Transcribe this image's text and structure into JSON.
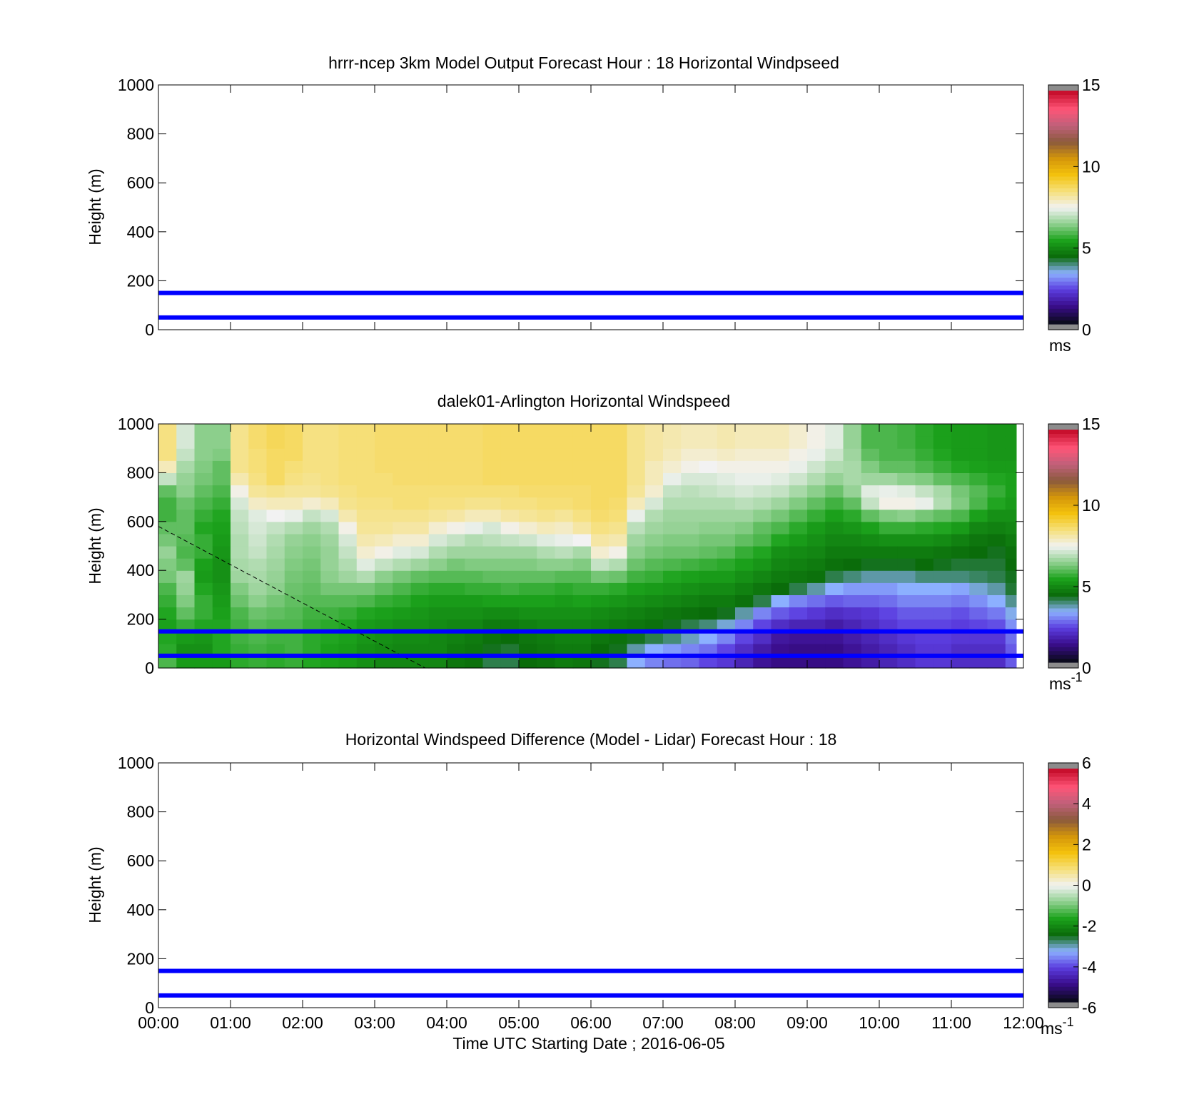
{
  "chart_data": [
    {
      "type": "heatmap",
      "title": "hrrr-ncep 3km Model Output   Forecast Hour : 18 Horizontal Windpseed",
      "ylabel": "Height (m)",
      "xlabel": "",
      "ylim": [
        0,
        1000
      ],
      "yticks": [
        "0",
        "200",
        "400",
        "600",
        "800",
        "1000"
      ],
      "xlim_hours": [
        0,
        12
      ],
      "colorbar": {
        "ticks": [
          "0",
          "5",
          "10",
          "15"
        ],
        "unit": "ms",
        "unit_sup": "",
        "range": [
          0,
          15
        ]
      },
      "reference_lines_m": [
        50,
        150
      ],
      "cells": []
    },
    {
      "type": "heatmap",
      "title": "dalek01-Arlington  Horizontal Windspeed",
      "ylabel": "Height (m)",
      "xlabel": "",
      "ylim": [
        0,
        1000
      ],
      "yticks": [
        "0",
        "200",
        "400",
        "600",
        "800",
        "1000"
      ],
      "xlim_hours": [
        0,
        12
      ],
      "colorbar": {
        "ticks": [
          "0",
          "5",
          "10",
          "15"
        ],
        "unit": "ms",
        "unit_sup": "-1",
        "range": [
          0,
          15
        ]
      },
      "reference_lines_m": [
        50,
        150
      ],
      "dashed_line": {
        "from": [
          0,
          580
        ],
        "to": [
          3.7,
          0
        ]
      },
      "column_times_h": [
        0,
        0.25,
        0.5,
        0.75,
        1,
        1.25,
        1.5,
        1.75,
        2,
        2.25,
        2.5,
        2.75,
        3,
        3.25,
        3.5,
        3.75,
        4,
        4.25,
        4.5,
        4.75,
        5,
        5.25,
        5.5,
        5.75,
        6,
        6.25,
        6.5,
        6.75,
        7,
        7.25,
        7.5,
        7.75,
        8,
        8.25,
        8.5,
        8.75,
        9,
        9.25,
        9.5,
        9.75,
        10,
        10.25,
        10.5,
        10.75,
        11,
        11.25,
        11.5,
        11.75
      ],
      "height_levels_m": [
        0,
        50,
        100,
        150,
        200,
        250,
        300,
        350,
        400,
        450,
        500,
        550,
        600,
        650,
        700,
        750,
        800,
        850,
        900,
        950
      ],
      "windspeed_ms": [
        [
          5.8,
          5.5,
          5.4,
          5.3,
          5.4,
          5.6,
          5.8,
          6.2,
          6.3,
          6.5,
          6.2,
          6.0,
          5.7,
          5.7,
          6.0,
          7.0,
          8.0,
          8.5,
          8.5,
          8.5
        ],
        [
          5.2,
          5.0,
          5.2,
          5.6,
          6.0,
          6.3,
          6.5,
          6.6,
          6.0,
          5.8,
          5.9,
          6.0,
          6.0,
          6.1,
          6.4,
          6.5,
          6.7,
          7.0,
          7.2,
          7.2
        ],
        [
          5.2,
          5.0,
          5.1,
          5.4,
          5.6,
          5.6,
          5.4,
          5.2,
          5.3,
          5.6,
          5.6,
          5.4,
          5.6,
          5.8,
          6.0,
          6.2,
          6.3,
          6.4,
          6.4,
          6.4
        ],
        [
          5.2,
          5.4,
          5.4,
          5.4,
          5.3,
          5.2,
          5.1,
          5.0,
          5.0,
          5.1,
          5.2,
          5.3,
          5.4,
          5.6,
          5.8,
          6.0,
          6.0,
          6.3,
          6.4,
          6.4
        ],
        [
          5.5,
          5.6,
          5.7,
          5.7,
          5.8,
          6.1,
          6.3,
          6.6,
          6.7,
          6.8,
          6.8,
          6.9,
          7.0,
          7.2,
          7.6,
          8.1,
          8.4,
          8.4,
          8.4,
          8.4
        ],
        [
          5.6,
          5.7,
          5.8,
          5.9,
          6.1,
          6.4,
          6.6,
          6.7,
          6.8,
          7.0,
          7.1,
          7.2,
          7.3,
          7.9,
          8.3,
          8.5,
          8.6,
          8.6,
          8.7,
          8.7
        ],
        [
          5.5,
          5.6,
          5.7,
          5.8,
          6.0,
          6.2,
          6.4,
          6.5,
          6.6,
          6.7,
          6.8,
          7.0,
          7.5,
          8.0,
          8.4,
          8.8,
          8.8,
          8.8,
          8.9,
          8.9
        ],
        [
          5.6,
          5.7,
          5.7,
          5.8,
          5.9,
          6.0,
          6.1,
          6.2,
          6.3,
          6.4,
          6.5,
          6.8,
          7.4,
          8.0,
          8.3,
          8.5,
          8.6,
          8.8,
          8.8,
          8.8
        ],
        [
          5.4,
          5.5,
          5.5,
          5.6,
          5.7,
          5.9,
          6.0,
          6.1,
          6.2,
          6.3,
          6.4,
          6.6,
          7.0,
          7.8,
          8.3,
          8.4,
          8.5,
          8.5,
          8.5,
          8.5
        ],
        [
          5.3,
          5.3,
          5.4,
          5.5,
          5.7,
          5.9,
          6.2,
          6.4,
          6.5,
          6.5,
          6.6,
          6.8,
          7.2,
          8.0,
          8.4,
          8.5,
          8.5,
          8.5,
          8.5,
          8.5
        ],
        [
          5.2,
          5.2,
          5.3,
          5.4,
          5.6,
          5.9,
          6.2,
          6.6,
          6.8,
          7.0,
          7.2,
          7.6,
          8.1,
          8.4,
          8.5,
          8.6,
          8.6,
          8.6,
          8.6,
          8.6
        ],
        [
          5.0,
          5.0,
          5.1,
          5.2,
          5.4,
          5.8,
          6.2,
          6.8,
          7.3,
          7.8,
          8.1,
          8.3,
          8.4,
          8.5,
          8.6,
          8.6,
          8.6,
          8.6,
          8.6,
          8.6
        ],
        [
          4.8,
          4.9,
          5.0,
          5.1,
          5.3,
          5.6,
          6.0,
          6.4,
          7.0,
          7.6,
          8.0,
          8.3,
          8.4,
          8.5,
          8.6,
          8.6,
          8.7,
          8.7,
          8.7,
          8.7
        ],
        [
          4.8,
          4.8,
          4.9,
          5.0,
          5.2,
          5.5,
          5.8,
          6.2,
          6.8,
          7.3,
          7.8,
          8.2,
          8.4,
          8.6,
          8.6,
          8.7,
          8.7,
          8.7,
          8.7,
          8.7
        ],
        [
          4.8,
          4.8,
          4.9,
          5.0,
          5.1,
          5.3,
          5.6,
          6.0,
          6.6,
          7.2,
          7.8,
          8.2,
          8.4,
          8.6,
          8.6,
          8.7,
          8.7,
          8.7,
          8.7,
          8.7
        ],
        [
          4.8,
          4.8,
          4.8,
          4.9,
          5.0,
          5.2,
          5.5,
          5.9,
          6.4,
          6.8,
          7.2,
          7.8,
          8.3,
          8.5,
          8.6,
          8.7,
          8.7,
          8.7,
          8.7,
          8.7
        ],
        [
          4.5,
          4.6,
          4.7,
          4.8,
          5.0,
          5.2,
          5.5,
          5.9,
          6.2,
          6.6,
          7.0,
          7.6,
          8.2,
          8.5,
          8.6,
          8.7,
          8.7,
          8.7,
          8.7,
          8.7
        ],
        [
          4.4,
          4.5,
          4.6,
          4.8,
          5.0,
          5.2,
          5.6,
          5.9,
          6.3,
          6.6,
          6.8,
          7.4,
          8.0,
          8.4,
          8.6,
          8.7,
          8.7,
          8.7,
          8.7,
          8.7
        ],
        [
          4.0,
          4.2,
          4.4,
          4.6,
          4.9,
          5.3,
          5.6,
          6.0,
          6.3,
          6.6,
          6.9,
          7.2,
          8.0,
          8.4,
          8.6,
          8.8,
          8.8,
          8.8,
          8.8,
          8.8
        ],
        [
          4.0,
          4.1,
          4.3,
          4.6,
          4.9,
          5.3,
          5.7,
          6.0,
          6.3,
          6.6,
          7.0,
          7.6,
          8.2,
          8.5,
          8.6,
          8.8,
          8.8,
          8.8,
          8.8,
          8.8
        ],
        [
          4.3,
          4.4,
          4.5,
          4.7,
          5.0,
          5.3,
          5.6,
          6.0,
          6.3,
          6.6,
          7.1,
          7.8,
          8.3,
          8.5,
          8.7,
          8.8,
          8.8,
          8.8,
          8.8,
          8.8
        ],
        [
          4.4,
          4.5,
          4.6,
          4.8,
          5.0,
          5.3,
          5.6,
          6.0,
          6.4,
          6.8,
          7.3,
          8.0,
          8.4,
          8.6,
          8.7,
          8.8,
          8.8,
          8.8,
          8.8,
          8.8
        ],
        [
          4.6,
          4.6,
          4.7,
          4.8,
          5.0,
          5.2,
          5.5,
          5.9,
          6.4,
          6.9,
          7.4,
          7.9,
          8.3,
          8.6,
          8.7,
          8.8,
          8.8,
          8.8,
          8.8,
          8.8
        ],
        [
          4.5,
          4.6,
          4.7,
          4.8,
          5.0,
          5.3,
          5.6,
          5.9,
          6.3,
          6.7,
          7.5,
          8.2,
          8.5,
          8.7,
          8.7,
          8.8,
          8.8,
          8.8,
          8.8,
          8.8
        ],
        [
          4.2,
          4.3,
          4.5,
          4.7,
          4.9,
          5.2,
          5.6,
          6.2,
          7.0,
          7.8,
          8.2,
          8.5,
          8.7,
          8.8,
          8.8,
          8.8,
          8.8,
          8.8,
          8.8,
          8.8
        ],
        [
          4.0,
          4.2,
          4.4,
          4.6,
          4.8,
          5.1,
          5.5,
          6.1,
          6.8,
          7.6,
          8.1,
          8.4,
          8.6,
          8.7,
          8.8,
          8.8,
          8.8,
          8.8,
          8.8,
          8.8
        ],
        [
          3.2,
          3.6,
          4.2,
          4.5,
          4.7,
          5.0,
          5.3,
          5.7,
          6.1,
          6.4,
          6.6,
          6.9,
          7.4,
          8.0,
          8.3,
          8.4,
          8.4,
          8.4,
          8.4,
          8.4
        ],
        [
          2.8,
          3.2,
          4.0,
          4.4,
          4.6,
          4.9,
          5.2,
          5.6,
          5.9,
          6.2,
          6.4,
          6.6,
          6.8,
          7.2,
          7.8,
          8.0,
          8.0,
          8.2,
          8.2,
          8.2
        ],
        [
          2.6,
          3.0,
          3.8,
          4.2,
          4.5,
          4.8,
          5.1,
          5.4,
          5.8,
          6.1,
          6.3,
          6.5,
          6.6,
          6.8,
          7.0,
          7.4,
          7.8,
          8.0,
          8.1,
          8.1
        ],
        [
          2.5,
          2.8,
          3.5,
          4.0,
          4.4,
          4.7,
          5.0,
          5.3,
          5.7,
          6.1,
          6.3,
          6.5,
          6.6,
          6.8,
          6.9,
          7.2,
          7.6,
          7.8,
          8.0,
          8.0
        ],
        [
          2.2,
          2.6,
          3.2,
          3.8,
          4.3,
          4.6,
          4.9,
          5.2,
          5.6,
          6.0,
          6.2,
          6.4,
          6.6,
          6.8,
          7.0,
          7.2,
          7.5,
          7.8,
          8.0,
          8.0
        ],
        [
          2.0,
          2.2,
          2.8,
          3.4,
          4.2,
          4.6,
          4.9,
          5.2,
          5.5,
          5.9,
          6.2,
          6.4,
          6.6,
          6.8,
          7.1,
          7.3,
          7.6,
          7.9,
          8.1,
          8.1
        ],
        [
          1.6,
          1.8,
          2.2,
          2.8,
          3.6,
          4.4,
          4.7,
          5.0,
          5.3,
          5.6,
          6.0,
          6.3,
          6.6,
          6.9,
          7.2,
          7.4,
          7.6,
          7.8,
          8.0,
          8.0
        ],
        [
          1.2,
          1.4,
          1.8,
          2.2,
          2.8,
          4.0,
          4.5,
          4.8,
          5.1,
          5.4,
          5.8,
          6.0,
          6.4,
          6.8,
          7.1,
          7.4,
          7.6,
          7.8,
          8.0,
          8.0
        ],
        [
          1.0,
          1.1,
          1.3,
          1.8,
          2.4,
          3.2,
          4.3,
          4.6,
          4.8,
          5.0,
          5.4,
          5.8,
          6.2,
          6.6,
          7.0,
          7.3,
          7.6,
          7.8,
          8.0,
          8.0
        ],
        [
          1.0,
          1.0,
          1.2,
          1.6,
          2.2,
          2.8,
          4.0,
          4.5,
          4.7,
          4.9,
          5.2,
          5.5,
          5.9,
          6.3,
          6.7,
          7.1,
          7.4,
          7.6,
          7.8,
          7.8
        ],
        [
          1.0,
          1.0,
          1.2,
          1.6,
          2.0,
          2.6,
          3.6,
          4.4,
          4.6,
          4.8,
          5.0,
          5.2,
          5.6,
          6.0,
          6.4,
          6.8,
          7.1,
          7.4,
          7.6,
          7.6
        ],
        [
          1.0,
          1.0,
          1.2,
          1.4,
          1.8,
          2.4,
          3.2,
          4.0,
          4.4,
          4.6,
          4.8,
          5.0,
          5.3,
          5.7,
          6.1,
          6.5,
          6.8,
          7.1,
          7.3,
          7.3
        ],
        [
          1.2,
          1.2,
          1.4,
          1.6,
          1.9,
          2.5,
          3.0,
          3.8,
          4.3,
          4.6,
          4.8,
          5.1,
          5.5,
          6.0,
          6.5,
          6.7,
          6.7,
          6.6,
          6.5,
          6.5
        ],
        [
          1.4,
          1.4,
          1.6,
          1.8,
          2.0,
          2.5,
          3.0,
          3.6,
          4.2,
          4.6,
          4.9,
          5.3,
          6.0,
          7.0,
          7.3,
          6.6,
          6.3,
          6.0,
          5.8,
          5.8
        ],
        [
          1.6,
          1.6,
          1.8,
          2.0,
          2.2,
          2.6,
          3.0,
          3.6,
          4.2,
          4.6,
          5.0,
          5.6,
          6.3,
          7.6,
          7.4,
          6.6,
          6.0,
          5.8,
          5.8,
          5.8
        ],
        [
          1.8,
          1.8,
          2.0,
          2.2,
          2.4,
          2.8,
          3.2,
          3.6,
          4.2,
          4.6,
          5.0,
          5.6,
          6.4,
          7.6,
          7.3,
          6.4,
          6.0,
          5.8,
          5.7,
          5.7
        ],
        [
          2.0,
          2.0,
          2.1,
          2.2,
          2.4,
          2.8,
          3.2,
          3.8,
          4.3,
          4.6,
          5.0,
          5.5,
          6.2,
          7.4,
          7.0,
          6.3,
          5.8,
          5.6,
          5.5,
          5.5
        ],
        [
          2.0,
          2.0,
          2.1,
          2.2,
          2.4,
          2.8,
          3.2,
          3.8,
          4.2,
          4.5,
          4.9,
          5.4,
          6.0,
          6.8,
          6.7,
          6.0,
          5.6,
          5.4,
          5.3,
          5.3
        ],
        [
          1.8,
          1.8,
          2.0,
          2.1,
          2.3,
          2.7,
          3.1,
          3.8,
          4.1,
          4.4,
          4.7,
          5.2,
          5.8,
          6.3,
          6.2,
          5.8,
          5.4,
          5.2,
          5.2,
          5.2
        ],
        [
          1.8,
          1.8,
          2.0,
          2.2,
          2.5,
          2.9,
          3.4,
          3.9,
          4.1,
          4.3,
          4.5,
          4.8,
          5.3,
          5.8,
          5.9,
          5.6,
          5.3,
          5.2,
          5.2,
          5.2
        ],
        [
          1.8,
          1.8,
          2.0,
          2.3,
          2.7,
          3.2,
          3.6,
          4.0,
          4.1,
          4.2,
          4.4,
          4.7,
          5.0,
          5.4,
          5.6,
          5.4,
          5.2,
          5.1,
          5.1,
          5.1
        ],
        [
          2.4,
          2.4,
          2.6,
          2.9,
          3.3,
          3.7,
          4.1,
          4.2,
          4.3,
          4.4,
          4.6,
          4.8,
          5.0,
          5.2,
          5.3,
          5.3,
          5.2,
          5.1,
          5.1,
          5.1
        ]
      ]
    },
    {
      "type": "heatmap",
      "title": "Horizontal Windspeed Difference (Model - Lidar) Forecast Hour : 18",
      "ylabel": "Height (m)",
      "xlabel": "Time UTC  Starting Date ; 2016-06-05",
      "ylim": [
        0,
        1000
      ],
      "yticks": [
        "0",
        "200",
        "400",
        "600",
        "800",
        "1000"
      ],
      "xlim_hours": [
        0,
        12
      ],
      "xticks": [
        "00:00",
        "01:00",
        "02:00",
        "03:00",
        "04:00",
        "05:00",
        "06:00",
        "07:00",
        "08:00",
        "09:00",
        "10:00",
        "11:00",
        "12:00"
      ],
      "colorbar": {
        "ticks": [
          "-6",
          "-4",
          "-2",
          "0",
          "2",
          "4",
          "6"
        ],
        "unit": "ms",
        "unit_sup": "-1",
        "range": [
          -6,
          6
        ]
      },
      "reference_lines_m": [
        50,
        150
      ],
      "cells": []
    }
  ],
  "colors": {
    "reference_line": "#0000ff",
    "colormap_stops": [
      "#8c8c8c",
      "#0c0b1f",
      "#3a0d8c",
      "#5b3ee0",
      "#8db2ff",
      "#0a6b0a",
      "#1ca31c",
      "#8fd08f",
      "#f2f2f2",
      "#f6e07a",
      "#f4c20d",
      "#d4960a",
      "#8b5a3c",
      "#c0607a",
      "#ff5577",
      "#c8102e",
      "#8c8c8c"
    ]
  }
}
